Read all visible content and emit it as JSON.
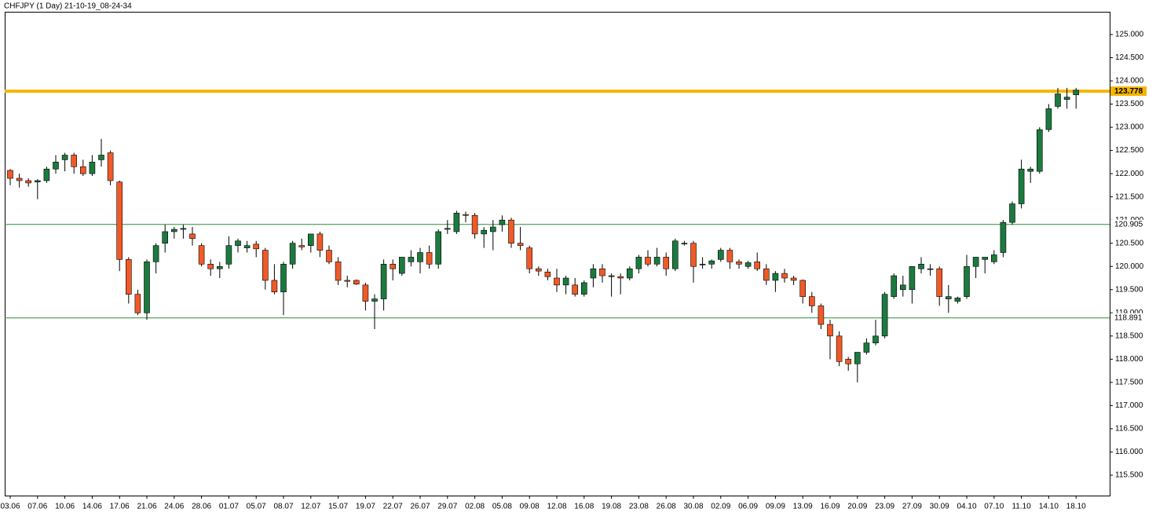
{
  "chart_data": {
    "type": "candlestick",
    "title": "CHFJPY (1 Day) 21-10-19_08-24-34",
    "up_color": "#1b7a3e",
    "down_color": "#f05a28",
    "categories": [
      "03.06",
      null,
      null,
      "07.06",
      null,
      null,
      "10.06",
      null,
      null,
      "14.06",
      null,
      null,
      "17.06",
      null,
      null,
      "21.06",
      null,
      null,
      "24.06",
      null,
      null,
      "28.06",
      null,
      null,
      "01.07",
      null,
      null,
      "05.07",
      null,
      null,
      "08.07",
      null,
      null,
      "12.07",
      null,
      null,
      "15.07",
      null,
      null,
      "19.07",
      null,
      null,
      "22.07",
      null,
      null,
      "26.07",
      null,
      null,
      "29.07",
      null,
      null,
      "02.08",
      null,
      null,
      "05.08",
      null,
      null,
      "09.08",
      null,
      null,
      "12.08",
      null,
      null,
      "16.08",
      null,
      null,
      "19.08",
      null,
      null,
      "23.08",
      null,
      null,
      "26.08",
      null,
      null,
      "30.08",
      null,
      null,
      "02.09",
      null,
      null,
      "06.09",
      null,
      null,
      "09.09",
      null,
      null,
      "13.09",
      null,
      null,
      "16.09",
      null,
      null,
      "20.09",
      null,
      null,
      "23.09",
      null,
      null,
      "27.09",
      null,
      null,
      "30.09",
      null,
      null,
      "04.10",
      null,
      null,
      "07.10",
      null,
      null,
      "11.10",
      null,
      null,
      "14.10",
      null,
      null,
      "18.10"
    ],
    "open": [
      122.07,
      121.9,
      121.85,
      121.82,
      121.85,
      122.1,
      122.3,
      122.4,
      122.15,
      122.0,
      122.3,
      122.45,
      121.82,
      120.15,
      119.4,
      119.0,
      120.1,
      120.5,
      120.75,
      120.8,
      120.7,
      120.45,
      120.05,
      119.95,
      120.05,
      120.45,
      120.4,
      120.48,
      120.35,
      119.7,
      119.45,
      120.05,
      120.45,
      120.45,
      120.7,
      120.35,
      120.1,
      119.7,
      119.7,
      119.6,
      119.25,
      119.3,
      120.05,
      119.85,
      120.1,
      120.1,
      120.3,
      120.05,
      120.8,
      120.75,
      121.12,
      121.1,
      120.7,
      120.75,
      120.9,
      121.0,
      120.5,
      120.4,
      119.95,
      119.88,
      119.75,
      119.6,
      119.6,
      119.4,
      119.75,
      119.95,
      119.78,
      119.78,
      119.75,
      119.95,
      120.2,
      120.05,
      120.2,
      119.95,
      120.5,
      120.5,
      120.05,
      120.05,
      120.15,
      120.35,
      120.1,
      120.0,
      120.1,
      119.95,
      119.7,
      119.85,
      119.75,
      119.7,
      119.35,
      119.15,
      118.75,
      118.5,
      118.0,
      117.9,
      118.15,
      118.35,
      118.5,
      119.35,
      119.5,
      119.5,
      119.95,
      119.95,
      119.95,
      119.3,
      119.25,
      119.35,
      120.0,
      120.15,
      120.1,
      120.3,
      120.95,
      121.35,
      122.05,
      122.05,
      122.95,
      123.45,
      123.6,
      123.7
    ],
    "high": [
      122.1,
      122.0,
      121.9,
      121.88,
      122.15,
      122.4,
      122.45,
      122.45,
      122.3,
      122.4,
      122.75,
      122.5,
      121.85,
      120.2,
      119.5,
      120.15,
      120.5,
      120.9,
      120.85,
      120.9,
      120.85,
      120.5,
      120.15,
      120.1,
      120.65,
      120.6,
      120.55,
      120.55,
      120.4,
      120.05,
      120.1,
      120.55,
      120.6,
      120.7,
      120.75,
      120.45,
      120.2,
      119.8,
      119.72,
      119.65,
      119.4,
      120.15,
      120.15,
      120.2,
      120.35,
      120.4,
      120.45,
      120.8,
      121.0,
      121.2,
      121.18,
      121.15,
      120.85,
      121.0,
      121.1,
      121.05,
      120.85,
      120.45,
      120.0,
      119.95,
      119.95,
      119.8,
      119.75,
      119.7,
      120.05,
      120.05,
      119.85,
      119.85,
      120.0,
      120.25,
      120.35,
      120.4,
      120.3,
      120.6,
      120.55,
      120.55,
      120.2,
      120.15,
      120.4,
      120.4,
      120.15,
      120.12,
      120.3,
      120.05,
      119.9,
      119.95,
      119.8,
      119.72,
      119.45,
      119.2,
      118.85,
      118.6,
      118.05,
      118.15,
      118.45,
      118.85,
      119.45,
      119.85,
      119.8,
      120.0,
      120.2,
      120.05,
      120.0,
      119.6,
      119.35,
      120.25,
      120.2,
      120.2,
      120.35,
      121.0,
      121.4,
      122.3,
      122.15,
      123.0,
      123.5,
      123.85,
      123.85,
      123.85
    ],
    "low": [
      121.75,
      121.7,
      121.72,
      121.45,
      121.8,
      122.0,
      122.05,
      122.0,
      121.95,
      121.95,
      122.15,
      121.75,
      119.9,
      119.2,
      118.95,
      118.85,
      119.85,
      120.3,
      120.6,
      120.6,
      120.45,
      120.0,
      119.8,
      119.75,
      119.95,
      120.3,
      120.3,
      120.2,
      119.5,
      119.4,
      118.95,
      119.95,
      120.35,
      120.3,
      120.2,
      120.05,
      119.6,
      119.55,
      119.6,
      119.05,
      118.65,
      119.05,
      119.7,
      119.8,
      120.0,
      119.85,
      119.95,
      119.95,
      120.7,
      120.7,
      120.95,
      120.6,
      120.4,
      120.35,
      120.75,
      120.4,
      120.35,
      119.85,
      119.8,
      119.7,
      119.45,
      119.4,
      119.35,
      119.35,
      119.55,
      119.65,
      119.35,
      119.4,
      119.7,
      119.85,
      120.0,
      120.0,
      119.8,
      119.9,
      120.45,
      119.65,
      119.95,
      119.95,
      120.1,
      119.95,
      119.95,
      119.95,
      119.9,
      119.6,
      119.45,
      119.65,
      119.6,
      119.2,
      119.0,
      118.65,
      118.0,
      117.85,
      117.75,
      117.5,
      118.1,
      118.3,
      118.45,
      119.3,
      119.35,
      119.2,
      119.85,
      119.8,
      119.15,
      119.0,
      119.2,
      119.3,
      119.75,
      119.85,
      120.05,
      120.2,
      120.9,
      121.25,
      121.8,
      122.0,
      122.9,
      123.4,
      123.4,
      123.4
    ],
    "close": [
      121.9,
      121.85,
      121.8,
      121.85,
      122.1,
      122.25,
      122.4,
      122.15,
      122.0,
      122.25,
      122.4,
      121.85,
      120.15,
      119.4,
      119.0,
      120.1,
      120.45,
      120.75,
      120.8,
      120.82,
      120.6,
      120.05,
      119.95,
      120.0,
      120.45,
      120.55,
      120.45,
      120.38,
      119.7,
      119.45,
      120.05,
      120.5,
      120.42,
      120.7,
      120.35,
      120.1,
      119.7,
      119.68,
      119.62,
      119.25,
      119.3,
      120.05,
      119.95,
      120.2,
      120.2,
      120.3,
      120.05,
      120.75,
      120.82,
      121.15,
      121.1,
      120.7,
      120.78,
      120.85,
      121.0,
      120.5,
      120.45,
      119.95,
      119.9,
      119.78,
      119.6,
      119.75,
      119.4,
      119.65,
      119.95,
      119.8,
      119.8,
      119.75,
      119.95,
      120.2,
      120.05,
      120.2,
      119.95,
      120.55,
      120.5,
      120.0,
      120.05,
      120.12,
      120.35,
      120.1,
      120.05,
      120.08,
      119.95,
      119.7,
      119.85,
      119.75,
      119.7,
      119.35,
      119.15,
      118.75,
      118.5,
      117.95,
      117.9,
      118.15,
      118.35,
      118.5,
      119.4,
      119.8,
      119.6,
      120.0,
      120.05,
      119.95,
      119.35,
      119.35,
      119.32,
      120.0,
      120.2,
      120.2,
      120.25,
      120.95,
      121.35,
      122.1,
      122.1,
      122.95,
      123.4,
      123.72,
      123.65,
      123.8
    ],
    "levels": [
      {
        "value": 123.778,
        "color": "#f5b400"
      },
      {
        "value": 120.905,
        "color": "#2e8b3a"
      },
      {
        "value": 118.891,
        "color": "#2e8b3a"
      }
    ],
    "ylim": [
      115.06,
      125.49
    ],
    "yticks": [
      {
        "value": 115.5,
        "label": "115.500"
      },
      {
        "value": 116,
        "label": "116.000"
      },
      {
        "value": 116.5,
        "label": "116.500"
      },
      {
        "value": 117,
        "label": "117.000"
      },
      {
        "value": 117.5,
        "label": "117.500"
      },
      {
        "value": 118,
        "label": "118.000"
      },
      {
        "value": 118.5,
        "label": "118.500"
      },
      {
        "value": 119,
        "label": "119.000"
      },
      {
        "value": 119.5,
        "label": "119.500"
      },
      {
        "value": 120,
        "label": "120.000"
      },
      {
        "value": 120.5,
        "label": "120.500"
      },
      {
        "value": 121,
        "label": "121.000"
      },
      {
        "value": 121.5,
        "label": "121.500"
      },
      {
        "value": 122,
        "label": "122.000"
      },
      {
        "value": 122.5,
        "label": "122.500"
      },
      {
        "value": 123,
        "label": "123.000"
      },
      {
        "value": 123.5,
        "label": "123.500"
      },
      {
        "value": 124,
        "label": "124.000"
      },
      {
        "value": 124.5,
        "label": "124.500"
      },
      {
        "value": 125,
        "label": "125.000"
      }
    ]
  }
}
